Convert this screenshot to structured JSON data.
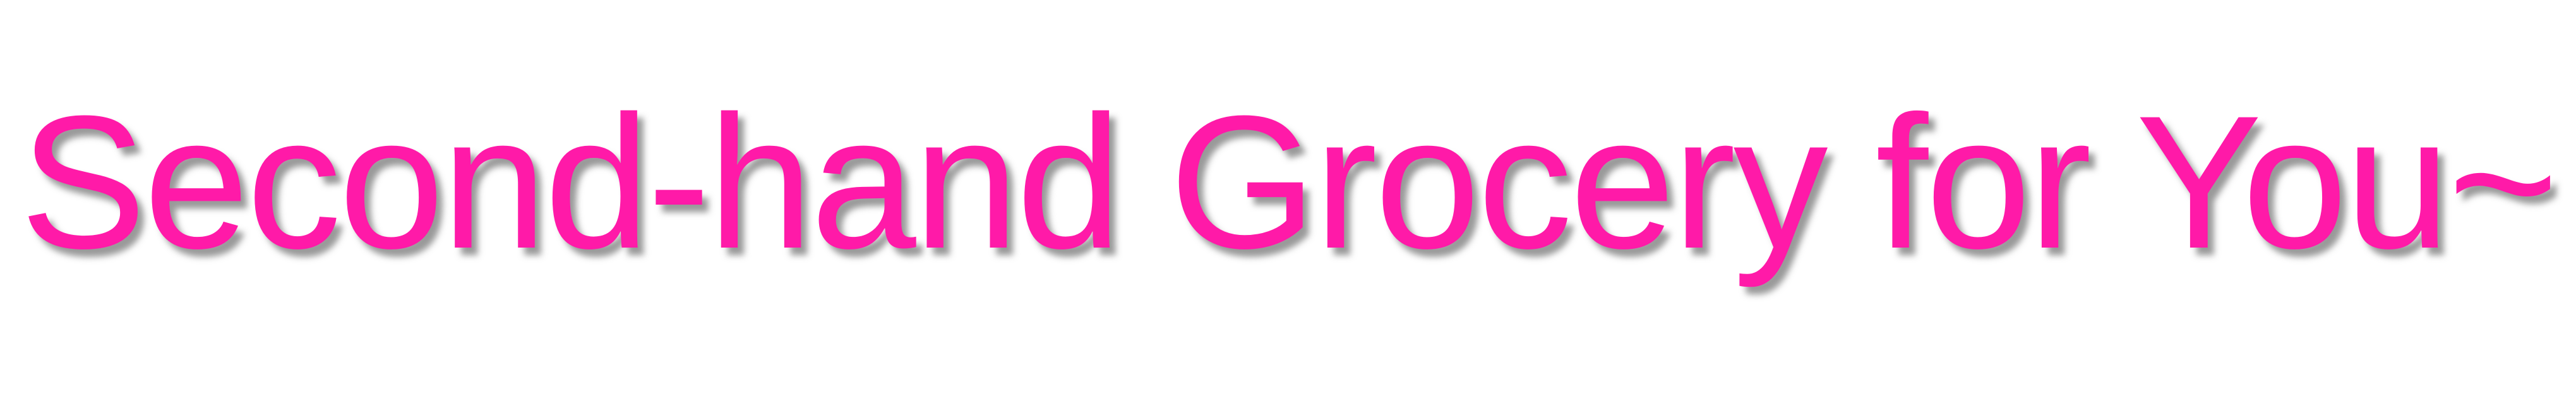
{
  "banner": {
    "headline": "Second-hand Grocery for You~",
    "text_color": "#ff1aa8",
    "background_color": "#ffffff"
  }
}
